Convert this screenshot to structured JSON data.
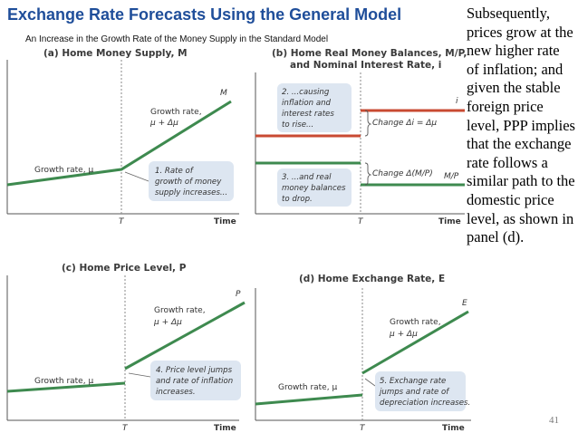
{
  "slide": {
    "title": "Exchange Rate Forecasts Using the General Model",
    "subtitle": "An Increase in the Growth Rate of the Money Supply in the Standard Model",
    "side_text": "Subsequently, prices grow at the new higher rate of inflation; and given the stable foreign price level, PPP implies that the exchange rate follows a similar path to the domestic price level, as shown in panel (d).",
    "page_number": "41"
  },
  "colors": {
    "title": "#1f4e9a",
    "green": "#3e8a4f",
    "red": "#c94a32",
    "callout_bg": "#dde6f1"
  },
  "panels": {
    "a": {
      "title": "(a) Home Money Supply, M",
      "curve_label": "M",
      "growth_before": "Growth rate, μ",
      "growth_after_1": "Growth rate,",
      "growth_after_2": "μ + Δμ",
      "note": [
        "1. Rate of",
        "growth of money",
        "supply increases..."
      ],
      "t_label": "T",
      "x_label": "Time"
    },
    "b": {
      "title_1": "(b) Home Real Money Balances, M/P,",
      "title_2": "and Nominal Interest Rate, i",
      "note_top": [
        "2. ...causing",
        "inflation and",
        "interest rates",
        "to rise..."
      ],
      "note_bottom": [
        "3. ...and real",
        "money balances",
        "to drop."
      ],
      "change_i": "Change Δi = Δμ",
      "change_mp": "Change Δ(M/P)",
      "label_i": "i",
      "label_mp": "M/P",
      "t_label": "T",
      "x_label": "Time"
    },
    "c": {
      "title": "(c) Home Price Level, P",
      "curve_label": "P",
      "growth_before": "Growth rate, μ",
      "growth_after_1": "Growth rate,",
      "growth_after_2": "μ + Δμ",
      "note": [
        "4. Price level jumps",
        "and rate of inflation",
        "increases."
      ],
      "t_label": "T",
      "x_label": "Time"
    },
    "d": {
      "title": "(d) Home Exchange Rate, E",
      "curve_label": "E",
      "growth_before": "Growth rate, μ",
      "growth_after_1": "Growth rate,",
      "growth_after_2": "μ + Δμ",
      "note": [
        "5. Exchange rate",
        "jumps and rate of",
        "depreciation increases."
      ],
      "t_label": "T",
      "x_label": "Time"
    }
  }
}
